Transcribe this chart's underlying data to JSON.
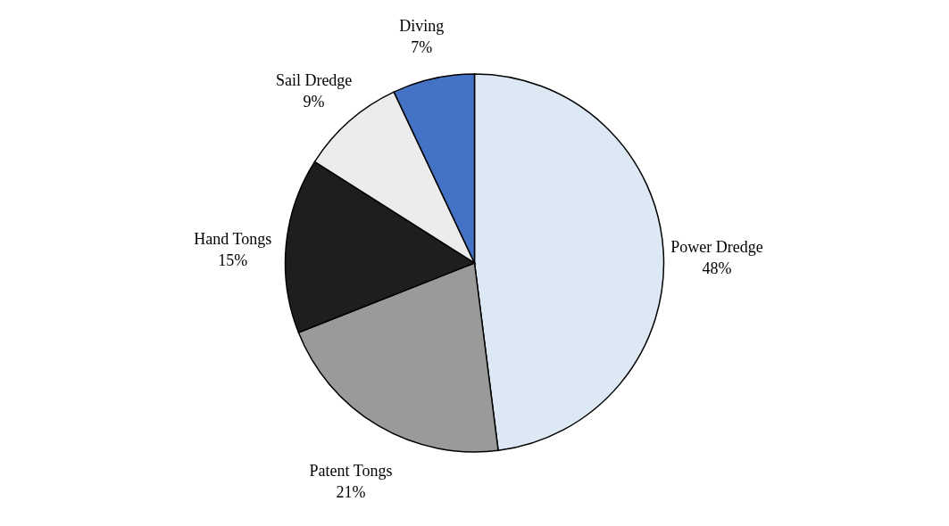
{
  "chart_data": {
    "type": "pie",
    "categories": [
      "Power Dredge",
      "Patent Tongs",
      "Hand Tongs",
      "Sail Dredge",
      "Diving"
    ],
    "values": [
      48,
      21,
      15,
      9,
      7
    ],
    "colors": [
      "#dde8f5",
      "#9a9a9a",
      "#1e1e1e",
      "#ececec",
      "#4472c4"
    ],
    "value_labels": [
      "48%",
      "21%",
      "15%",
      "9%",
      "7%"
    ]
  }
}
